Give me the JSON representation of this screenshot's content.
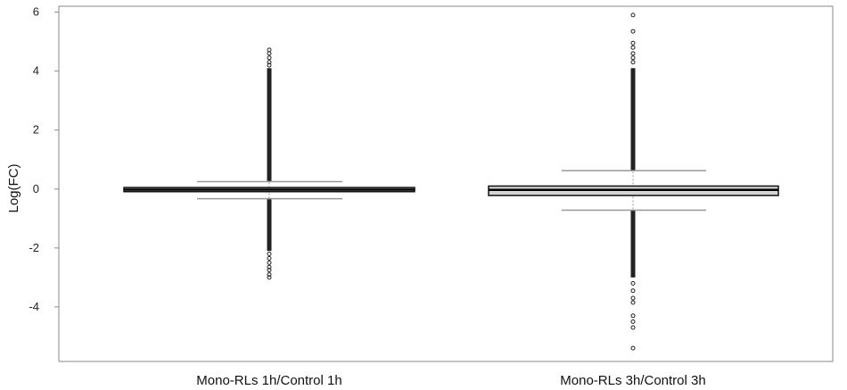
{
  "chart_data": {
    "type": "boxplot",
    "title": "",
    "xlabel": "",
    "ylabel": "Log(FC)",
    "ylim": [
      -5.85,
      6.2
    ],
    "yticks": [
      -4,
      -2,
      0,
      2,
      4,
      6
    ],
    "grid": false,
    "categories": [
      "Mono-RLs 1h/Control 1h",
      "Mono-RLs 3h/Control 3h"
    ],
    "boxes": [
      {
        "category": "Mono-RLs 1h/Control 1h",
        "q1": -0.09,
        "median": -0.02,
        "q3": 0.05,
        "whisker_low": -0.33,
        "whisker_high": 0.25,
        "outlier_band_high": [
          0.25,
          4.1
        ],
        "outlier_band_low": [
          -2.1,
          -0.33
        ],
        "outliers": [
          4.2,
          4.3,
          4.45,
          4.6,
          4.72,
          -2.2,
          -2.35,
          -2.5,
          -2.65,
          -2.75,
          -2.9,
          -3.0
        ]
      },
      {
        "category": "Mono-RLs 3h/Control 3h",
        "q1": -0.22,
        "median": -0.03,
        "q3": 0.1,
        "whisker_low": -0.72,
        "whisker_high": 0.62,
        "outlier_band_high": [
          0.62,
          4.1
        ],
        "outlier_band_low": [
          -3.0,
          -0.72
        ],
        "outliers": [
          4.3,
          4.45,
          4.6,
          4.8,
          4.95,
          5.35,
          5.9,
          -3.2,
          -3.45,
          -3.7,
          -3.85,
          -4.3,
          -4.5,
          -4.7,
          -5.4
        ]
      }
    ],
    "colors": {
      "box_fill": "#d4d4d4",
      "box_edge": "#111111",
      "median": "#000000",
      "whisker": "#999999",
      "outlier": "#222222"
    }
  }
}
